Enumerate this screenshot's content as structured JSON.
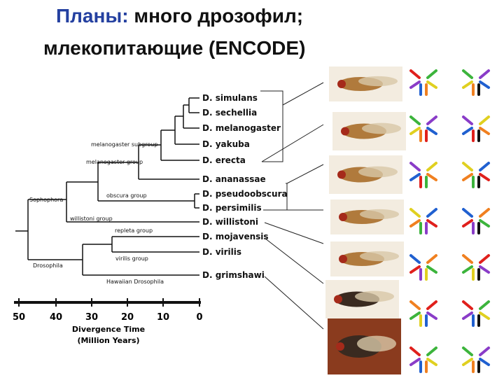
{
  "title": {
    "highlight": "Планы:",
    "line1_rest": "много дрозофил;",
    "line2": "млекопитающие (ENCODE)"
  },
  "tree": {
    "species": [
      "D. simulans",
      "D. sechellia",
      "D. melanogaster",
      "D. yakuba",
      "D. erecta",
      "D. ananassae",
      "D. pseudoobscura",
      "D. persimilis",
      "D. willistoni",
      "D. mojavensis",
      "D. virilis",
      "D. grimshawi"
    ],
    "groups": [
      "melanogaster subgroup",
      "melanogaster group",
      "obscura group",
      "Sophophora",
      "willistoni group",
      "repleta group",
      "virilis group",
      "Drosophila",
      "Hawaiian Drosophila"
    ]
  },
  "axis": {
    "ticks": [
      50,
      40,
      30,
      20,
      10,
      0
    ],
    "title": [
      "Divergence Time",
      "(Million Years)"
    ]
  }
}
